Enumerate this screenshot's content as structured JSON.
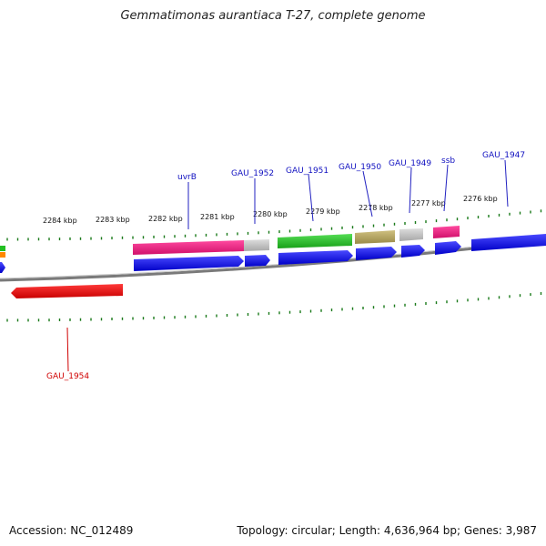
{
  "title": "Gemmatimonas aurantiaca T-27, complete genome",
  "footer": {
    "accession": "Accession: NC_012489",
    "stats": "Topology: circular; Length: 4,636,964 bp; Genes: 3,987"
  },
  "colors": {
    "backbone": "#888888",
    "tick": "#1a7a1a",
    "label_top": "#1010c0",
    "label_bottom": "#d00000"
  },
  "ticks": [
    "2284 kbp",
    "2283 kbp",
    "2282 kbp",
    "2281 kbp",
    "2280 kbp",
    "2279 kbp",
    "2278 kbp",
    "2277 kbp",
    "2276 kbp"
  ],
  "gene_labels": [
    {
      "text": "uvrB",
      "color": "#1010c0"
    },
    {
      "text": "GAU_1952",
      "color": "#1010c0"
    },
    {
      "text": "GAU_1951",
      "color": "#1010c0"
    },
    {
      "text": "GAU_1950",
      "color": "#1010c0"
    },
    {
      "text": "GAU_1949",
      "color": "#1010c0"
    },
    {
      "text": "ssb",
      "color": "#1010c0"
    },
    {
      "text": "GAU_1947",
      "color": "#1010c0"
    },
    {
      "text": "GAU_1954",
      "color": "#d00000"
    }
  ],
  "feature_colors": [
    "#e8177a",
    "#c0c0c0",
    "#22c022",
    "#b0a060",
    "#b8b8b8",
    "#e8177a",
    "#0000e0",
    "#e00000",
    "#ff8800",
    "#22c022"
  ]
}
